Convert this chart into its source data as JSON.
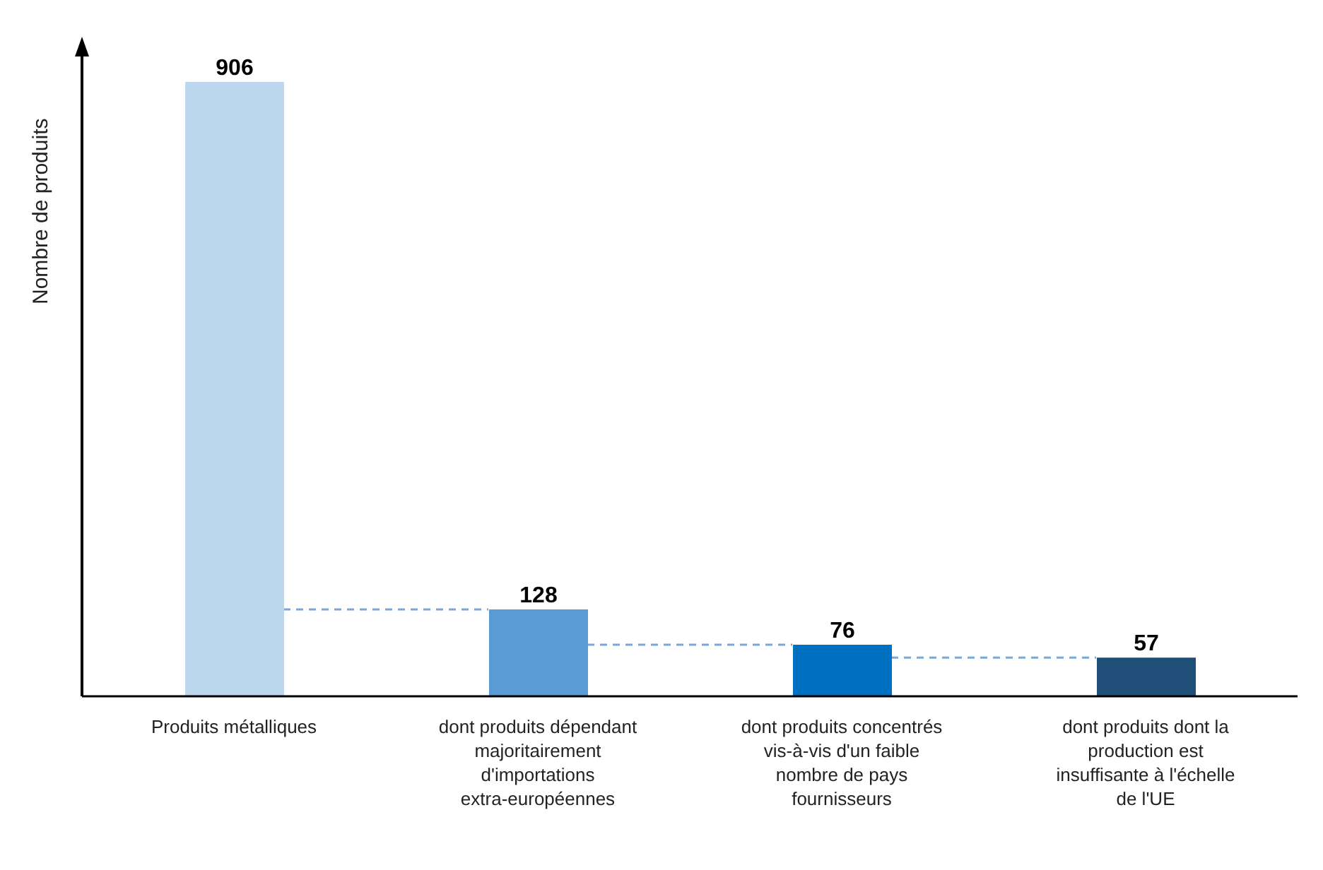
{
  "chart_data": {
    "type": "bar",
    "ylabel": "Nombre de produits",
    "categories": [
      "Produits métalliques",
      "dont produits dépendant majoritairement d'importations extra-européennes",
      "dont produits concentrés vis-à-vis d'un faible nombre de pays fournisseurs",
      "dont produits dont la production est insuffisante à l'échelle de l'UE"
    ],
    "values": [
      906,
      128,
      76,
      57
    ],
    "colors": [
      "#bdd7ee",
      "#5b9bd5",
      "#0070c0",
      "#1f4e79"
    ],
    "relative": false,
    "data_labels": true,
    "tick_labels": "x",
    "grid": false,
    "legend": false
  }
}
